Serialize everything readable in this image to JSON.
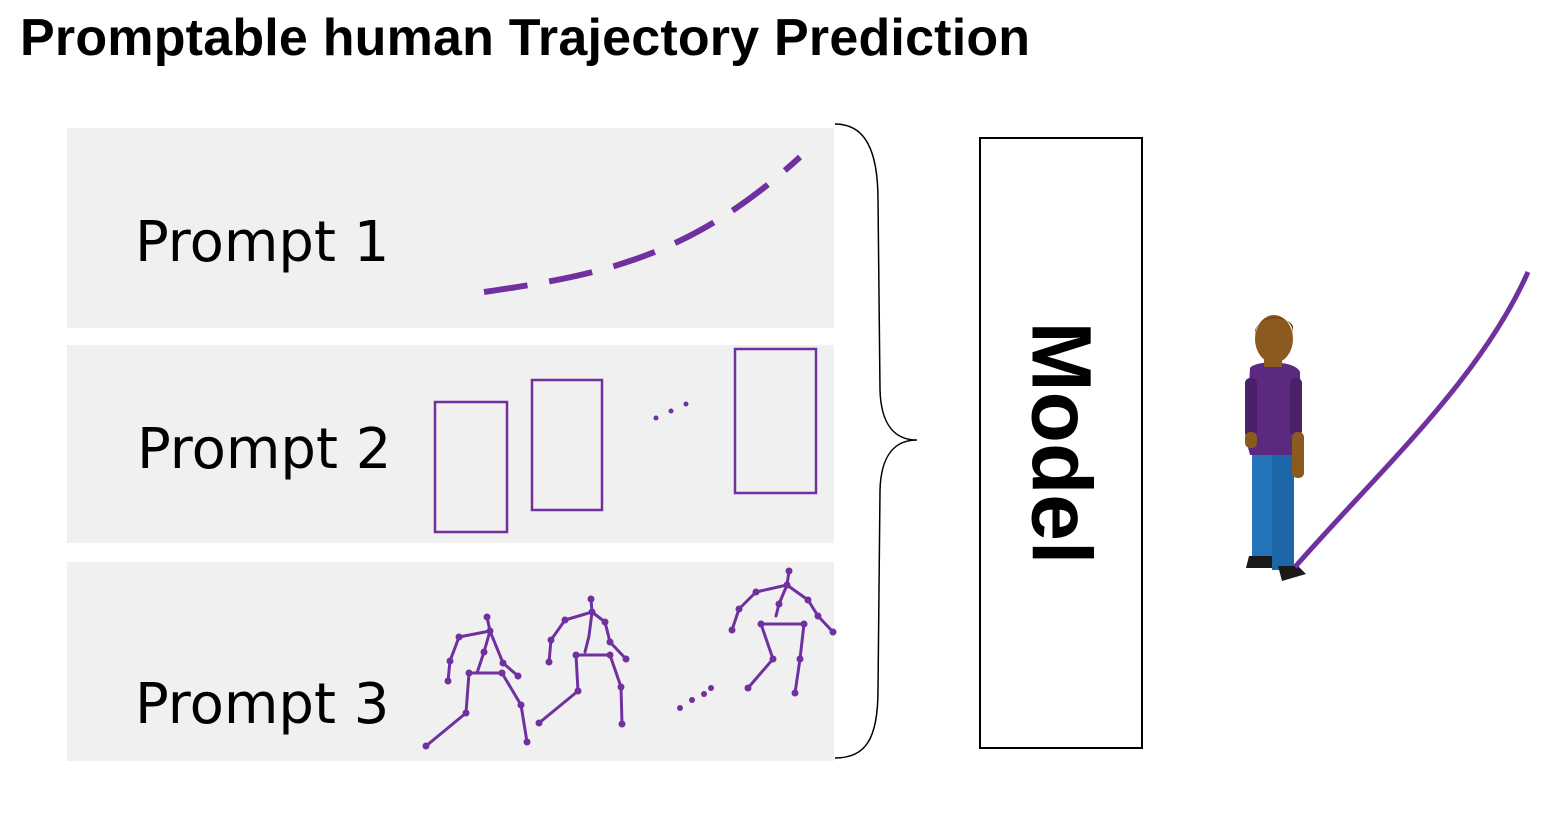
{
  "title": "Promptable human Trajectory Prediction",
  "prompts": [
    {
      "label": "Prompt 1"
    },
    {
      "label": "Prompt 2"
    },
    {
      "label": "Prompt 3"
    }
  ],
  "model_label": "Model",
  "colors": {
    "accent": "#7030a0",
    "panel_bg": "#f0f0f0",
    "person_shirt": "#5b2a80",
    "person_pants": "#2474b9",
    "person_skin": "#8b5a1e",
    "person_hair": "#6b3f12"
  }
}
